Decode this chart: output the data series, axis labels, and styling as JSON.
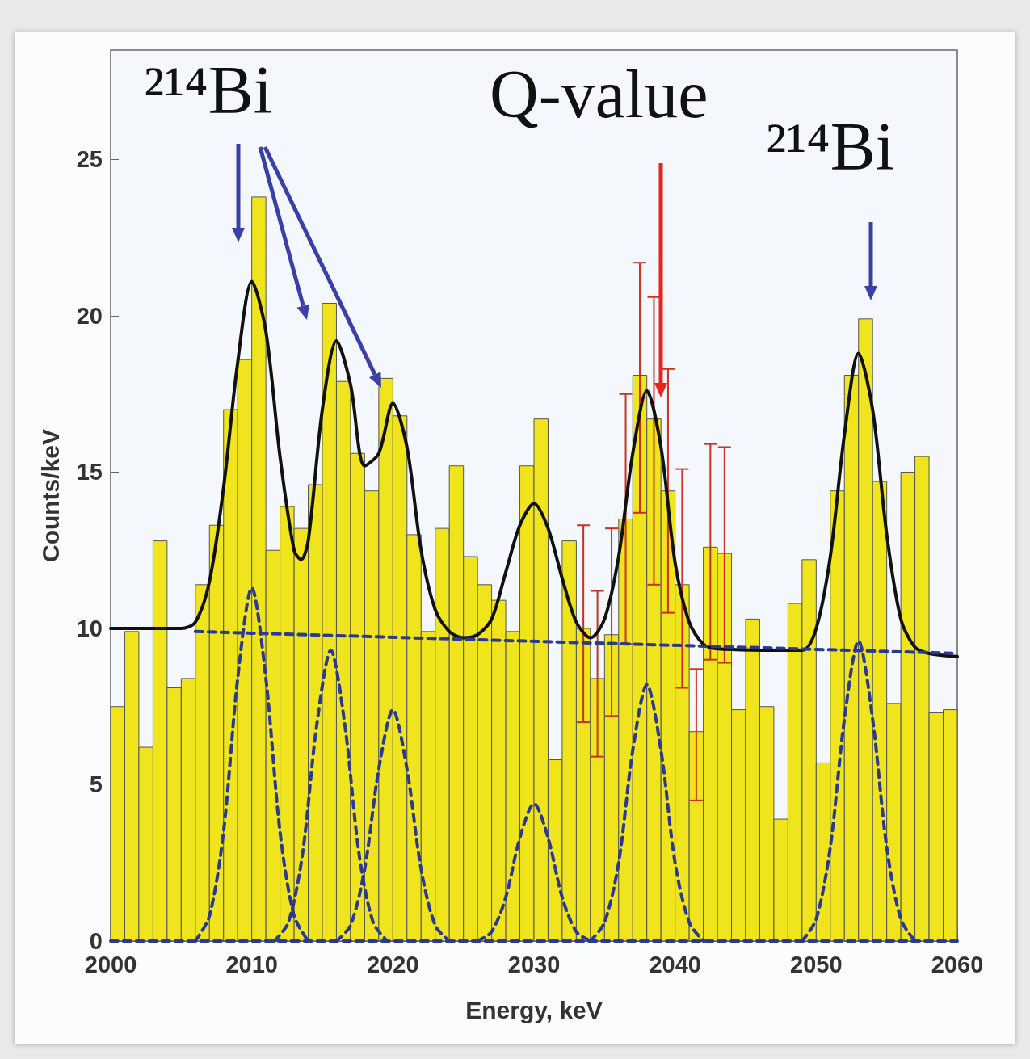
{
  "chart_data": {
    "type": "histogram",
    "xlabel": "Energy, keV",
    "ylabel": "Counts/keV",
    "annotations": [
      "²¹⁴Bi",
      "Q-value",
      "²¹⁴Bi"
    ],
    "bins": [
      2000,
      2001,
      2002,
      2003,
      2004,
      2005,
      2006,
      2007,
      2008,
      2009,
      2010,
      2011,
      2012,
      2013,
      2014,
      2015,
      2016,
      2017,
      2018,
      2019,
      2020,
      2021,
      2022,
      2023,
      2024,
      2025,
      2026,
      2027,
      2028,
      2029,
      2030,
      2031,
      2032,
      2033,
      2034,
      2035,
      2036,
      2037,
      2038,
      2039,
      2040,
      2041,
      2042,
      2043,
      2044,
      2045,
      2046,
      2047,
      2048,
      2049,
      2050,
      2051,
      2052,
      2053,
      2054,
      2055,
      2056,
      2057,
      2058,
      2059,
      2060
    ],
    "values": [
      7.5,
      9.9,
      6.2,
      12.8,
      8.1,
      8.4,
      11.4,
      13.3,
      17.0,
      18.6,
      23.8,
      12.5,
      13.9,
      13.2,
      14.6,
      20.4,
      17.9,
      15.6,
      14.4,
      18.0,
      16.8,
      13.0,
      9.9,
      13.2,
      15.2,
      12.3,
      11.4,
      10.9,
      9.9,
      15.2,
      16.7,
      5.8,
      12.8,
      10.0,
      8.4,
      9.8,
      13.5,
      18.1,
      16.7,
      14.4,
      11.4,
      6.7,
      12.6,
      12.4,
      7.4,
      10.3,
      7.5,
      3.9,
      10.8,
      12.2,
      5.7,
      14.4,
      18.1,
      19.9,
      14.7,
      7.6,
      15.0,
      15.5,
      7.3,
      7.4
    ],
    "color": "#f0e41c",
    "errors": [
      null,
      null,
      null,
      null,
      null,
      null,
      null,
      null,
      null,
      null,
      null,
      null,
      null,
      null,
      null,
      null,
      null,
      null,
      null,
      null,
      null,
      null,
      null,
      null,
      null,
      null,
      null,
      null,
      null,
      null,
      null,
      null,
      null,
      [
        7.0,
        13.3
      ],
      [
        5.9,
        11.2
      ],
      [
        7.2,
        13.2
      ],
      [
        9.5,
        17.5
      ],
      [
        13.7,
        21.7
      ],
      [
        11.4,
        20.6
      ],
      [
        10.5,
        18.3
      ],
      [
        8.1,
        15.1
      ],
      [
        4.5,
        8.7
      ],
      [
        9.0,
        15.9
      ],
      [
        8.9,
        15.8
      ],
      null,
      null,
      null,
      null,
      null,
      null,
      null,
      null,
      null,
      null,
      null,
      null,
      null,
      null,
      null,
      null
    ],
    "xlim": [
      2000,
      2060
    ],
    "xticks": [
      2000,
      2010,
      2020,
      2030,
      2040,
      2050,
      2060
    ],
    "ylim": [
      0,
      28.5
    ],
    "yticks": [
      0,
      5,
      10,
      15,
      20,
      25
    ],
    "grid": false,
    "series": [
      {
        "type": "line",
        "color": "#111111",
        "line_style": "solid",
        "x": [
          2000,
          2005,
          2006,
          2007,
          2008,
          2009,
          2010,
          2011,
          2012,
          2013,
          2013.5,
          2014,
          2015,
          2016,
          2017,
          2018,
          2019,
          2020,
          2021,
          2022,
          2023,
          2024,
          2025,
          2026,
          2027,
          2028,
          2029,
          2030,
          2031,
          2032,
          2033,
          2034,
          2035,
          2036,
          2037,
          2038,
          2039,
          2040,
          2041,
          2042,
          2043,
          2049,
          2050,
          2051,
          2052,
          2053,
          2054,
          2055,
          2056,
          2057,
          2058,
          2060
        ],
        "values": [
          10.0,
          10.0,
          10.2,
          11.5,
          14.5,
          18.5,
          21.1,
          19.5,
          15.5,
          12.5,
          12.2,
          12.8,
          17.0,
          19.2,
          17.8,
          15.2,
          15.6,
          17.2,
          15.8,
          12.5,
          10.6,
          9.9,
          9.7,
          9.8,
          10.3,
          11.8,
          13.3,
          14.0,
          13.2,
          11.6,
          10.2,
          9.7,
          10.3,
          12.3,
          15.6,
          17.6,
          15.8,
          12.1,
          10.2,
          9.5,
          9.35,
          9.3,
          10.0,
          12.3,
          16.2,
          18.8,
          17.0,
          13.0,
          10.3,
          9.4,
          9.2,
          9.1
        ]
      },
      {
        "type": "line",
        "color": "#2b3990",
        "line_style": "dashed",
        "x": [
          2006,
          2060
        ],
        "values": [
          9.9,
          9.2
        ]
      },
      {
        "type": "line",
        "color": "#2b3990",
        "line_style": "dashed",
        "x": [
          2000,
          2060
        ],
        "values": [
          0,
          0
        ]
      },
      {
        "type": "line",
        "color": "#2b3990",
        "line_style": "dashed",
        "x": [
          2006,
          2007,
          2008,
          2009,
          2010,
          2011,
          2012,
          2013,
          2014
        ],
        "values": [
          0,
          0.8,
          3.5,
          8.4,
          11.3,
          8.4,
          3.5,
          0.8,
          0
        ]
      },
      {
        "type": "line",
        "color": "#2b3990",
        "line_style": "dashed",
        "x": [
          2011.6,
          2012.6,
          2013.6,
          2014.6,
          2015.6,
          2016.6,
          2017.6,
          2018.6,
          2019.6
        ],
        "values": [
          0,
          0.6,
          2.8,
          6.9,
          9.3,
          6.9,
          2.8,
          0.6,
          0
        ]
      },
      {
        "type": "line",
        "color": "#2b3990",
        "line_style": "dashed",
        "x": [
          2016,
          2017,
          2018,
          2019,
          2020,
          2021,
          2022,
          2023,
          2024
        ],
        "values": [
          0,
          0.5,
          2.3,
          5.5,
          7.4,
          5.5,
          2.3,
          0.5,
          0
        ]
      },
      {
        "type": "line",
        "color": "#2b3990",
        "line_style": "dashed",
        "x": [
          2026,
          2027,
          2028,
          2029,
          2030,
          2031,
          2032,
          2033,
          2034
        ],
        "values": [
          0,
          0.3,
          1.4,
          3.3,
          4.4,
          3.3,
          1.4,
          0.3,
          0
        ]
      },
      {
        "type": "line",
        "color": "#2b3990",
        "line_style": "dashed",
        "x": [
          2034,
          2035,
          2036,
          2037,
          2038,
          2039,
          2040,
          2041,
          2042
        ],
        "values": [
          0,
          0.6,
          2.5,
          6.1,
          8.2,
          6.1,
          2.5,
          0.6,
          0
        ]
      },
      {
        "type": "line",
        "color": "#2b3990",
        "line_style": "dashed",
        "x": [
          2049,
          2050,
          2051,
          2052,
          2053,
          2054,
          2055,
          2056,
          2057
        ],
        "values": [
          0,
          0.7,
          3.0,
          7.1,
          9.6,
          7.1,
          3.0,
          0.7,
          0
        ]
      }
    ]
  }
}
